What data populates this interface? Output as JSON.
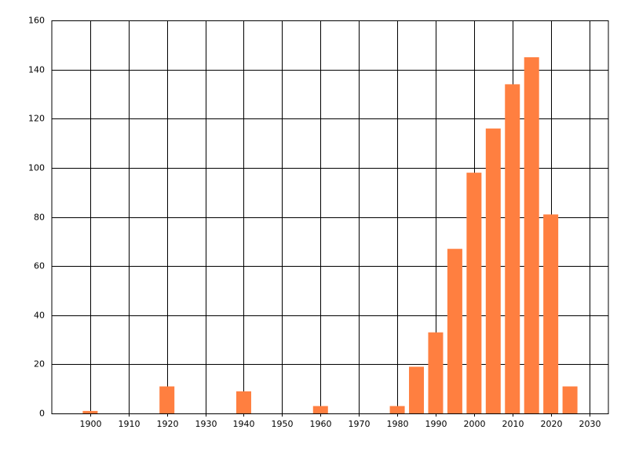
{
  "chart_data": {
    "type": "bar",
    "x": [
      1900,
      1920,
      1940,
      1960,
      1980,
      1985,
      1990,
      1995,
      2000,
      2005,
      2010,
      2015,
      2020,
      2025
    ],
    "values": [
      1,
      11,
      9,
      3,
      3,
      19,
      33,
      67,
      98,
      116,
      134,
      145,
      81,
      11
    ],
    "color": "#ff7f40",
    "xlim": [
      1890,
      2035
    ],
    "xticks": [
      1900,
      1910,
      1920,
      1930,
      1940,
      1950,
      1960,
      1970,
      1980,
      1990,
      2000,
      2010,
      2020,
      2030
    ],
    "ylim": [
      0,
      160
    ],
    "yticks": [
      0,
      20,
      40,
      60,
      80,
      100,
      120,
      140,
      160
    ],
    "grid": true
  }
}
